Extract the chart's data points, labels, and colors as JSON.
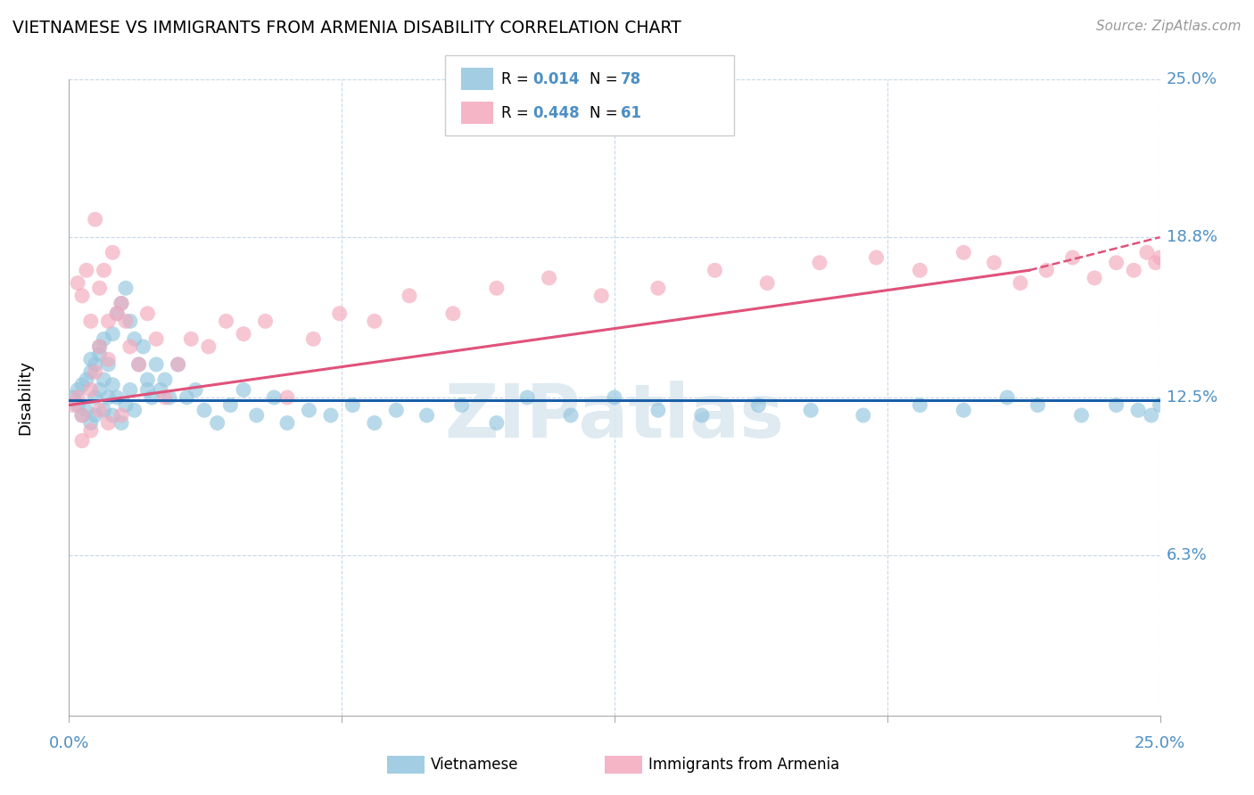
{
  "title": "VIETNAMESE VS IMMIGRANTS FROM ARMENIA DISABILITY CORRELATION CHART",
  "source": "Source: ZipAtlas.com",
  "ylabel": "Disability",
  "xlim": [
    0.0,
    0.25
  ],
  "ylim": [
    0.0,
    0.25
  ],
  "yticks": [
    0.0,
    0.063,
    0.125,
    0.188,
    0.25
  ],
  "ytick_labels": [
    "",
    "6.3%",
    "12.5%",
    "18.8%",
    "25.0%"
  ],
  "xticks": [
    0.0,
    0.0625,
    0.125,
    0.1875,
    0.25
  ],
  "color_blue": "#92c5de",
  "color_pink": "#f4a8bc",
  "line_blue": "#1a5fa8",
  "line_pink": "#e0527a",
  "background_color": "#ffffff",
  "tick_label_color": "#4d8fc4",
  "grid_color": "#c8d8e8",
  "viet_R": 0.014,
  "arm_R": 0.448,
  "viet_N": 78,
  "arm_N": 61,
  "vietnamese_x": [
    0.001,
    0.002,
    0.002,
    0.003,
    0.003,
    0.004,
    0.004,
    0.005,
    0.005,
    0.005,
    0.006,
    0.006,
    0.006,
    0.007,
    0.007,
    0.007,
    0.008,
    0.008,
    0.008,
    0.009,
    0.009,
    0.01,
    0.01,
    0.01,
    0.011,
    0.011,
    0.012,
    0.012,
    0.013,
    0.013,
    0.014,
    0.014,
    0.015,
    0.015,
    0.016,
    0.017,
    0.018,
    0.018,
    0.019,
    0.02,
    0.021,
    0.022,
    0.023,
    0.025,
    0.027,
    0.029,
    0.031,
    0.034,
    0.037,
    0.04,
    0.043,
    0.047,
    0.05,
    0.055,
    0.06,
    0.065,
    0.07,
    0.075,
    0.082,
    0.09,
    0.098,
    0.105,
    0.115,
    0.125,
    0.135,
    0.145,
    0.158,
    0.17,
    0.182,
    0.195,
    0.205,
    0.215,
    0.222,
    0.232,
    0.24,
    0.245,
    0.248,
    0.25
  ],
  "vietnamese_y": [
    0.125,
    0.128,
    0.122,
    0.13,
    0.118,
    0.132,
    0.12,
    0.135,
    0.115,
    0.14,
    0.125,
    0.138,
    0.118,
    0.142,
    0.128,
    0.145,
    0.132,
    0.12,
    0.148,
    0.125,
    0.138,
    0.13,
    0.15,
    0.118,
    0.158,
    0.125,
    0.162,
    0.115,
    0.168,
    0.122,
    0.155,
    0.128,
    0.148,
    0.12,
    0.138,
    0.145,
    0.128,
    0.132,
    0.125,
    0.138,
    0.128,
    0.132,
    0.125,
    0.138,
    0.125,
    0.128,
    0.12,
    0.115,
    0.122,
    0.128,
    0.118,
    0.125,
    0.115,
    0.12,
    0.118,
    0.122,
    0.115,
    0.12,
    0.118,
    0.122,
    0.115,
    0.125,
    0.118,
    0.125,
    0.12,
    0.118,
    0.122,
    0.12,
    0.118,
    0.122,
    0.12,
    0.125,
    0.122,
    0.118,
    0.122,
    0.12,
    0.118,
    0.122
  ],
  "armenia_x": [
    0.001,
    0.002,
    0.002,
    0.003,
    0.003,
    0.004,
    0.005,
    0.005,
    0.006,
    0.006,
    0.007,
    0.007,
    0.008,
    0.009,
    0.009,
    0.01,
    0.011,
    0.012,
    0.013,
    0.014,
    0.016,
    0.018,
    0.02,
    0.022,
    0.025,
    0.028,
    0.032,
    0.036,
    0.04,
    0.045,
    0.05,
    0.056,
    0.062,
    0.07,
    0.078,
    0.088,
    0.098,
    0.11,
    0.122,
    0.135,
    0.148,
    0.16,
    0.172,
    0.185,
    0.195,
    0.205,
    0.212,
    0.218,
    0.224,
    0.23,
    0.235,
    0.24,
    0.244,
    0.247,
    0.249,
    0.25,
    0.003,
    0.005,
    0.007,
    0.009,
    0.012
  ],
  "armenia_y": [
    0.122,
    0.17,
    0.125,
    0.165,
    0.118,
    0.175,
    0.155,
    0.128,
    0.195,
    0.135,
    0.168,
    0.145,
    0.175,
    0.155,
    0.14,
    0.182,
    0.158,
    0.162,
    0.155,
    0.145,
    0.138,
    0.158,
    0.148,
    0.125,
    0.138,
    0.148,
    0.145,
    0.155,
    0.15,
    0.155,
    0.125,
    0.148,
    0.158,
    0.155,
    0.165,
    0.158,
    0.168,
    0.172,
    0.165,
    0.168,
    0.175,
    0.17,
    0.178,
    0.18,
    0.175,
    0.182,
    0.178,
    0.17,
    0.175,
    0.18,
    0.172,
    0.178,
    0.175,
    0.182,
    0.178,
    0.18,
    0.108,
    0.112,
    0.12,
    0.115,
    0.118
  ]
}
